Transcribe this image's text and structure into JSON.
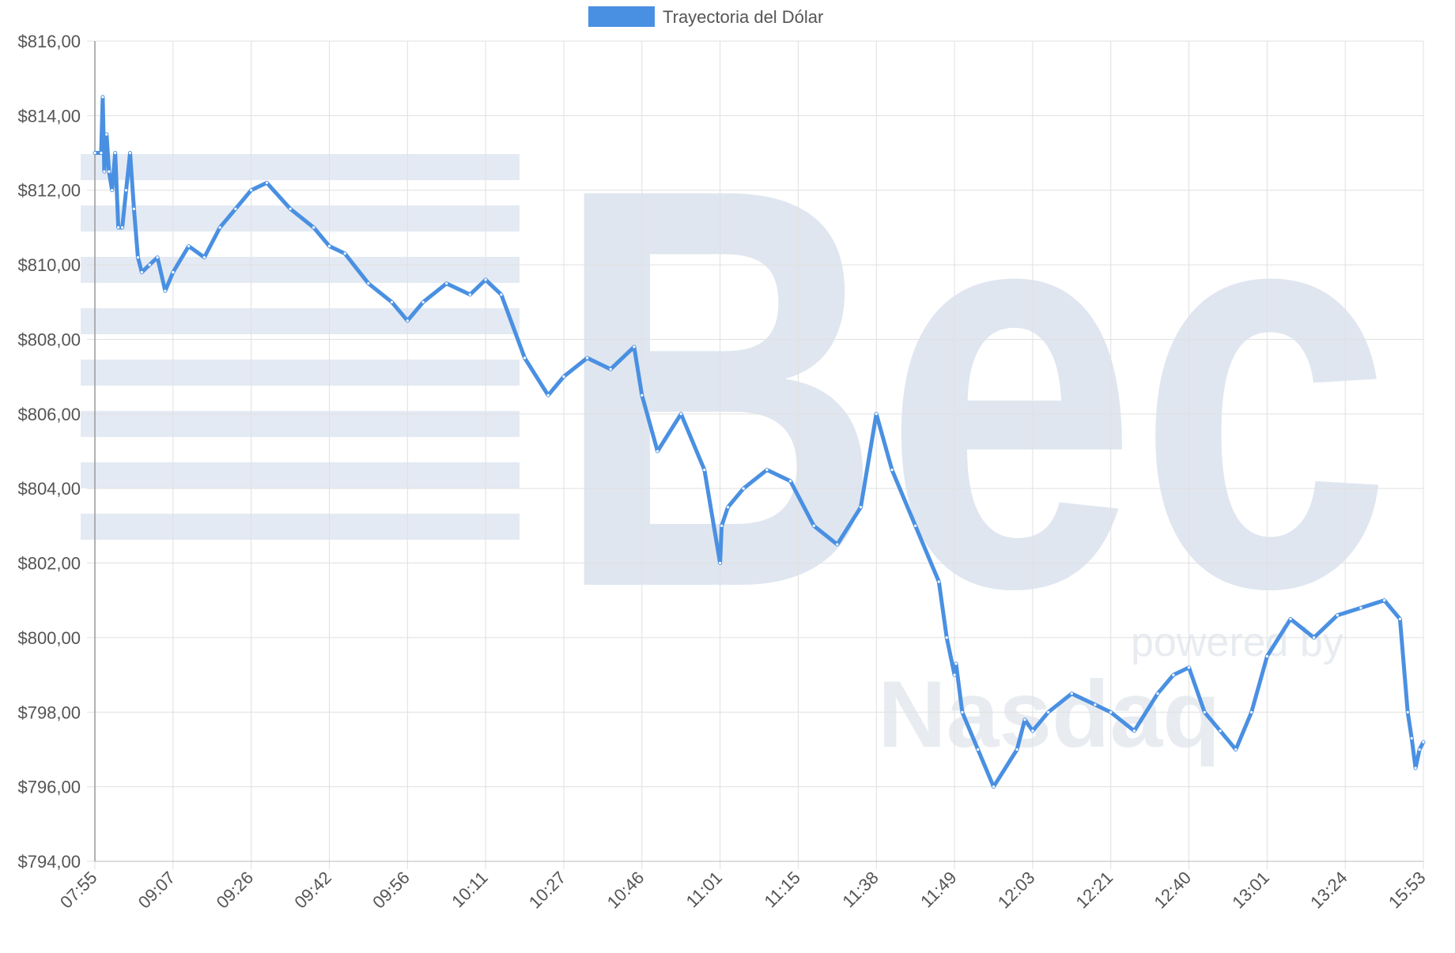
{
  "colors": {
    "series_line": "#4a90e2",
    "grid": "#e0e0e0",
    "axis_text": "#555555",
    "watermark": "#dfe6f0"
  },
  "watermark": {
    "logo_text": "Bec",
    "tagline": "powered by",
    "partner": "Nasdaq"
  },
  "chart_data": {
    "type": "line",
    "legend": {
      "position": "top",
      "entries": [
        "Trayectoria del Dólar"
      ]
    },
    "grid": true,
    "ylim": [
      794,
      816
    ],
    "yticks": [
      816,
      814,
      812,
      810,
      808,
      806,
      804,
      802,
      800,
      798,
      796,
      794
    ],
    "ytick_labels": [
      "$816,00",
      "$814,00",
      "$812,00",
      "$810,00",
      "$808,00",
      "$806,00",
      "$804,00",
      "$802,00",
      "$800,00",
      "$798,00",
      "$796,00",
      "$794,00"
    ],
    "xtick_labels": [
      "07:55",
      "09:07",
      "09:26",
      "09:42",
      "09:56",
      "10:11",
      "10:27",
      "10:46",
      "11:01",
      "11:15",
      "11:38",
      "11:49",
      "12:03",
      "12:21",
      "12:40",
      "13:01",
      "13:24",
      "15:53"
    ],
    "series": [
      {
        "name": "Trayectoria del Dólar",
        "x": [
          0,
          0.08,
          0.1,
          0.12,
          0.15,
          0.18,
          0.22,
          0.26,
          0.3,
          0.35,
          0.4,
          0.45,
          0.5,
          0.55,
          0.6,
          0.7,
          0.8,
          0.9,
          1.0,
          1.2,
          1.4,
          1.6,
          1.8,
          2.0,
          2.2,
          2.5,
          2.8,
          3.0,
          3.2,
          3.5,
          3.8,
          4.0,
          4.2,
          4.5,
          4.8,
          5.0,
          5.2,
          5.5,
          5.8,
          6.0,
          6.3,
          6.6,
          6.9,
          7.0,
          7.2,
          7.5,
          7.8,
          8.0,
          8.02,
          8.1,
          8.3,
          8.6,
          8.9,
          9.2,
          9.5,
          9.8,
          10.0,
          10.2,
          10.5,
          10.8,
          10.9,
          11.0,
          11.02,
          11.1,
          11.3,
          11.5,
          11.8,
          11.9,
          12.0,
          12.2,
          12.5,
          12.8,
          13.0,
          13.3,
          13.6,
          13.8,
          14.0,
          14.2,
          14.4,
          14.6,
          14.8,
          15.0,
          15.3,
          15.6,
          15.9,
          16.2,
          16.5,
          16.7,
          16.8,
          16.85,
          16.9,
          16.95,
          17.0
        ],
        "y": [
          813.0,
          813.0,
          814.5,
          812.5,
          813.5,
          812.5,
          812.0,
          813.0,
          811.0,
          811.0,
          812.0,
          813.0,
          811.5,
          810.2,
          809.8,
          810.0,
          810.2,
          809.3,
          809.8,
          810.5,
          810.2,
          811.0,
          811.5,
          812.0,
          812.2,
          811.5,
          811.0,
          810.5,
          810.3,
          809.5,
          809.0,
          808.5,
          809.0,
          809.5,
          809.2,
          809.6,
          809.2,
          807.5,
          806.5,
          807.0,
          807.5,
          807.2,
          807.8,
          806.5,
          805.0,
          806.0,
          804.5,
          802.0,
          803.0,
          803.5,
          804.0,
          804.5,
          804.2,
          803.0,
          802.5,
          803.5,
          806.0,
          804.5,
          803.0,
          801.5,
          800.0,
          799.0,
          799.3,
          798.0,
          797.0,
          796.0,
          797.0,
          797.8,
          797.5,
          798.0,
          798.5,
          798.2,
          798.0,
          797.5,
          798.5,
          799.0,
          799.2,
          798.0,
          797.5,
          797.0,
          798.0,
          799.5,
          800.5,
          800.0,
          800.6,
          800.8,
          801.0,
          800.5,
          798.0,
          797.3,
          796.5,
          797.0,
          797.2
        ]
      }
    ]
  }
}
